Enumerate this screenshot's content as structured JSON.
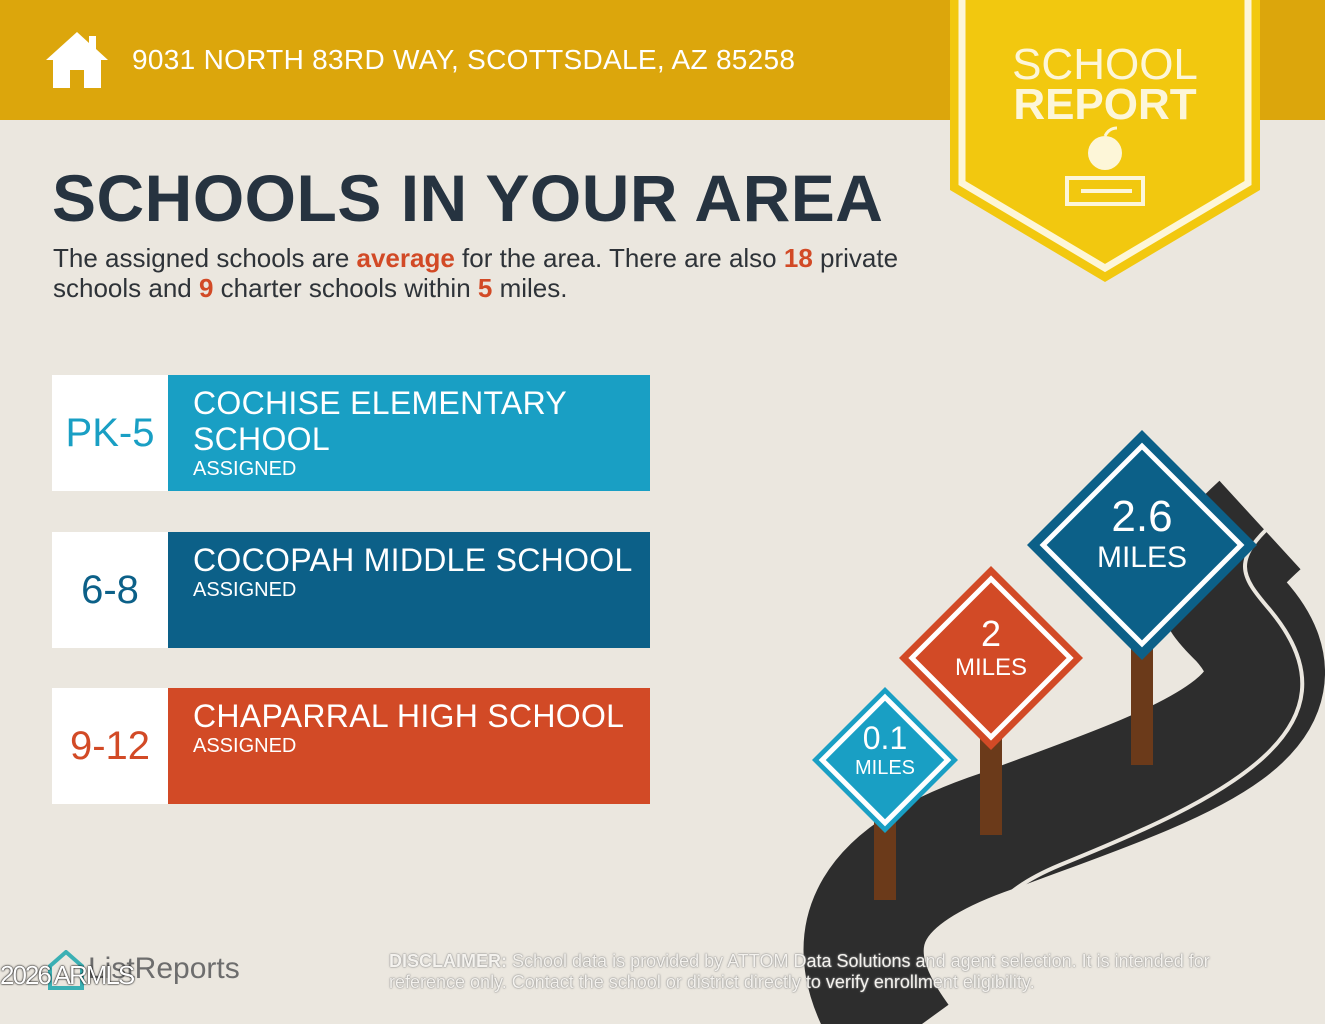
{
  "header": {
    "address": "9031 NORTH 83RD WAY, SCOTTSDALE, AZ 85258",
    "icon": "home-icon"
  },
  "badge": {
    "line1": "SCHOOL",
    "line2": "REPORT",
    "icon": "apple-books-icon"
  },
  "title": "SCHOOLS IN YOUR AREA",
  "summary": {
    "p1": "The assigned schools are ",
    "rating": "average",
    "p2": " for the area. There are also ",
    "private_count": "18",
    "p3": " private schools and ",
    "charter_count": "9",
    "p4": " charter schools within ",
    "radius": "5",
    "p5": " miles."
  },
  "schools": [
    {
      "grades": "PK-5",
      "name": "COCHISE ELEMENTARY SCHOOL",
      "status": "ASSIGNED",
      "color": "#199fc4"
    },
    {
      "grades": "6-8",
      "name": "COCOPAH MIDDLE SCHOOL",
      "status": "ASSIGNED",
      "color": "#0c6088"
    },
    {
      "grades": "9-12",
      "name": "CHAPARRAL HIGH SCHOOL",
      "status": "ASSIGNED",
      "color": "#d24a26"
    }
  ],
  "signs": [
    {
      "value": "0.1",
      "unit": "MILES",
      "color": "#199fc4"
    },
    {
      "value": "2",
      "unit": "MILES",
      "color": "#d24a26"
    },
    {
      "value": "2.6",
      "unit": "MILES",
      "color": "#0c6088"
    }
  ],
  "footer": {
    "logo": "ListReports",
    "watermark": "2026 ARMLS",
    "disclaimer_label": "DISCLAIMER:",
    "disclaimer": " School data is provided by ATTOM Data Solutions and agent selection. It is intended for reference only. Contact the school or district directly to verify enrollment eligibility."
  }
}
